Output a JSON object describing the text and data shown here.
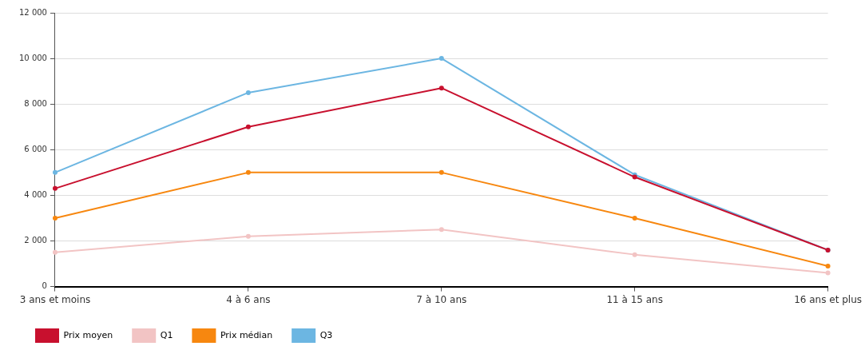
{
  "chart_data": {
    "type": "line",
    "categories": [
      "3 ans et moins",
      "4 à 6 ans",
      "7 à 10 ans",
      "11 à 15 ans",
      "16 ans et plus"
    ],
    "series": [
      {
        "name": "Prix moyen",
        "color": "#c8102e",
        "values": [
          4300,
          7000,
          8700,
          4800,
          1600
        ]
      },
      {
        "name": "Q1",
        "color": "#f2c4c4",
        "values": [
          1500,
          2200,
          2500,
          1400,
          600
        ]
      },
      {
        "name": "Prix médian",
        "color": "#f7870f",
        "values": [
          3000,
          5000,
          5000,
          3000,
          900
        ]
      },
      {
        "name": "Q3",
        "color": "#6cb6e2",
        "values": [
          5000,
          8500,
          10000,
          4900,
          1600
        ]
      }
    ],
    "ylim": [
      0,
      12000
    ],
    "yticks": [
      {
        "value": 0,
        "label": "0"
      },
      {
        "value": 2000,
        "label": "2 000"
      },
      {
        "value": 4000,
        "label": "4 000"
      },
      {
        "value": 6000,
        "label": "6 000"
      },
      {
        "value": 8000,
        "label": "8 000"
      },
      {
        "value": 10000,
        "label": "10 000"
      },
      {
        "value": 12000,
        "label": "12 000"
      }
    ],
    "grid": "y",
    "legend": "bottom",
    "marker": "circle",
    "line_style": "solid"
  }
}
